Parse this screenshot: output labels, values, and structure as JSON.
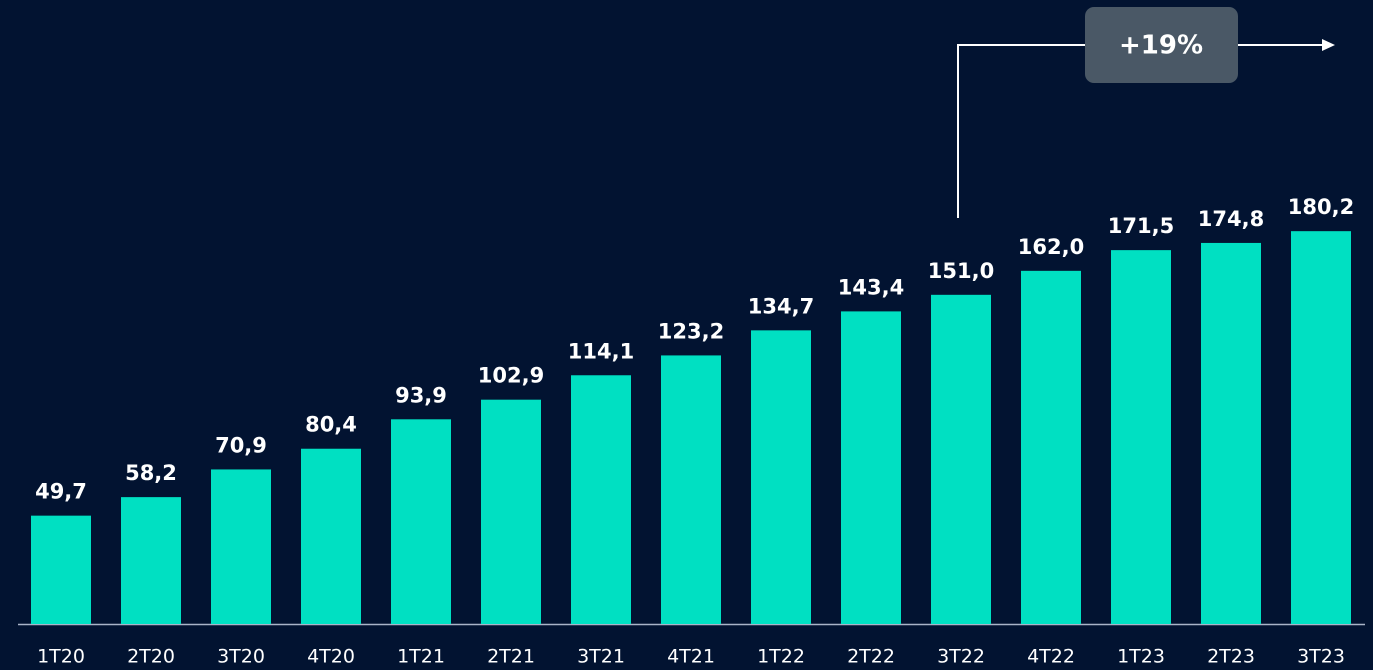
{
  "chart_data": {
    "type": "bar",
    "categories": [
      "1T20",
      "2T20",
      "3T20",
      "4T20",
      "1T21",
      "2T21",
      "3T21",
      "4T21",
      "1T22",
      "2T22",
      "3T22",
      "4T22",
      "1T23",
      "2T23",
      "3T23"
    ],
    "values": [
      49.7,
      58.2,
      70.9,
      80.4,
      93.9,
      102.9,
      114.1,
      123.2,
      134.7,
      143.4,
      151.0,
      162.0,
      171.5,
      174.8,
      180.2
    ],
    "value_labels": [
      "49,7",
      "58,2",
      "70,9",
      "80,4",
      "93,9",
      "102,9",
      "114,1",
      "123,2",
      "134,7",
      "143,4",
      "151,0",
      "162,0",
      "171,5",
      "174,8",
      "180,2"
    ],
    "color": "#00e0c2",
    "ylim": [
      0,
      200
    ],
    "annotation": "+19%"
  }
}
